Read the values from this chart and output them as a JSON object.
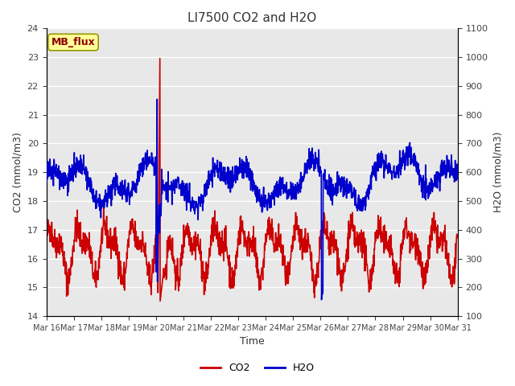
{
  "title": "LI7500 CO2 and H2O",
  "xlabel": "Time",
  "ylabel_left": "CO2 (mmol/m3)",
  "ylabel_right": "H2O (mmol/m3)",
  "ylim_left": [
    14.0,
    24.0
  ],
  "ylim_right": [
    100,
    1100
  ],
  "yticks_left": [
    14.0,
    15.0,
    16.0,
    17.0,
    18.0,
    19.0,
    20.0,
    21.0,
    22.0,
    23.0,
    24.0
  ],
  "yticks_right": [
    100,
    200,
    300,
    400,
    500,
    600,
    700,
    800,
    900,
    1000,
    1100
  ],
  "xtick_positions": [
    0,
    1,
    2,
    3,
    4,
    5,
    6,
    7,
    8,
    9,
    10,
    11,
    12,
    13,
    14,
    15
  ],
  "xtick_labels": [
    "Mar 16",
    "Mar 17",
    "Mar 18",
    "Mar 19",
    "Mar 20",
    "Mar 21",
    "Mar 22",
    "Mar 23",
    "Mar 24",
    "Mar 25",
    "Mar 26",
    "Mar 27",
    "Mar 28",
    "Mar 29",
    "Mar 30",
    "Mar 31"
  ],
  "co2_color": "#cc0000",
  "h2o_color": "#0000cc",
  "bg_color": "#e8e8e8",
  "grid_color": "#ffffff",
  "annotation_text": "MB_flux",
  "annotation_bg": "#ffff99",
  "annotation_border": "#999900",
  "linewidth": 1.2,
  "legend_co2": "CO2",
  "legend_h2o": "H2O"
}
